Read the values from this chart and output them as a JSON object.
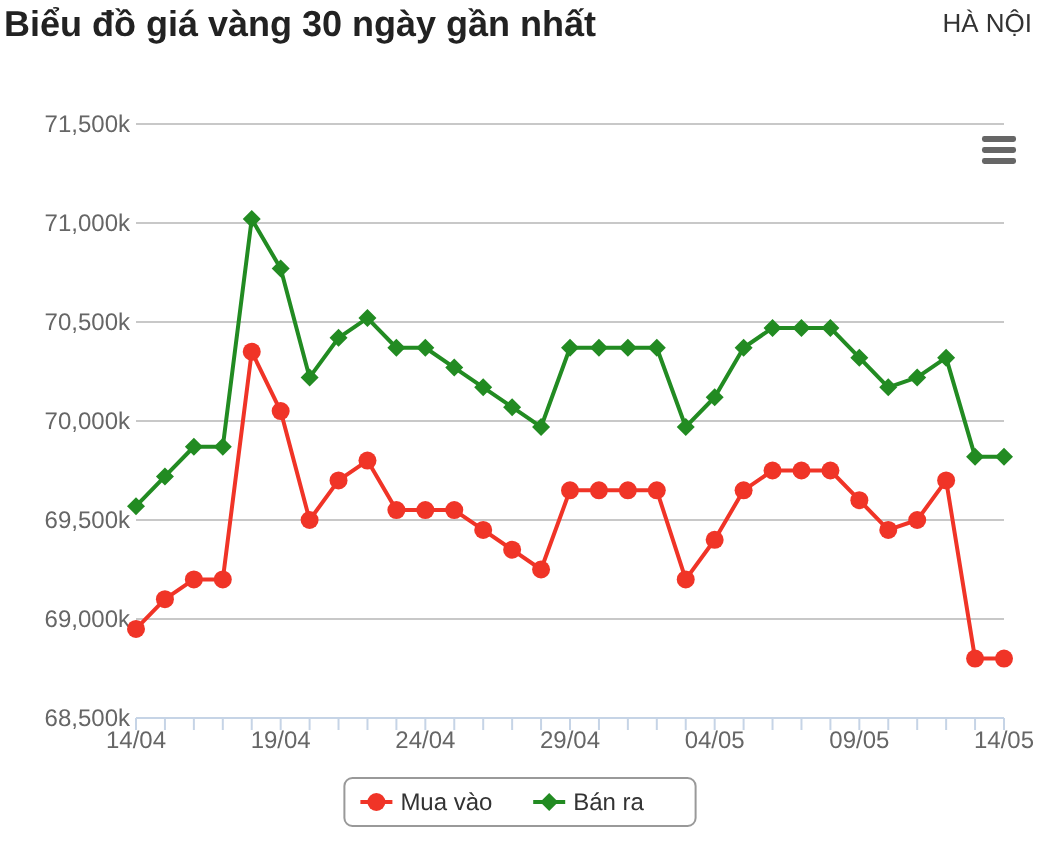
{
  "chart_data": {
    "type": "line",
    "title": "Biểu đồ giá vàng 30 ngày gần nhất",
    "subtitle": "HÀ NỘI",
    "categories": [
      "14/04",
      null,
      null,
      null,
      null,
      "19/04",
      null,
      null,
      null,
      null,
      "24/04",
      null,
      null,
      null,
      null,
      "29/04",
      null,
      null,
      null,
      null,
      "04/05",
      null,
      null,
      null,
      null,
      "09/05",
      null,
      null,
      null,
      null,
      "14/05"
    ],
    "series": [
      {
        "name": "Mua vào",
        "color": "#f03427",
        "marker": "circle",
        "values": [
          68950,
          69100,
          69200,
          69200,
          70350,
          70050,
          69500,
          69700,
          69800,
          69550,
          69550,
          69550,
          69450,
          69350,
          69250,
          69650,
          69650,
          69650,
          69650,
          69200,
          69400,
          69650,
          69750,
          69750,
          69750,
          69600,
          69450,
          69500,
          69700,
          68800,
          68800
        ]
      },
      {
        "name": "Bán ra",
        "color": "#228b22",
        "marker": "diamond",
        "values": [
          69570,
          69720,
          69870,
          69870,
          71020,
          70770,
          70220,
          70420,
          70520,
          70370,
          70370,
          70270,
          70170,
          70070,
          69970,
          70370,
          70370,
          70370,
          70370,
          69970,
          70120,
          70370,
          70470,
          70470,
          70470,
          70320,
          70170,
          70220,
          70320,
          69820,
          69820
        ]
      }
    ],
    "ylim": [
      68500,
      71500
    ],
    "yticks": [
      {
        "value": 68500,
        "label": "68,500k"
      },
      {
        "value": 69000,
        "label": "69,000k"
      },
      {
        "value": 69500,
        "label": "69,500k"
      },
      {
        "value": 70000,
        "label": "70,000k"
      },
      {
        "value": 70500,
        "label": "70,500k"
      },
      {
        "value": 71000,
        "label": "71,000k"
      },
      {
        "value": 71500,
        "label": "71,500k"
      }
    ],
    "grid": "y",
    "legend": "bottom"
  }
}
